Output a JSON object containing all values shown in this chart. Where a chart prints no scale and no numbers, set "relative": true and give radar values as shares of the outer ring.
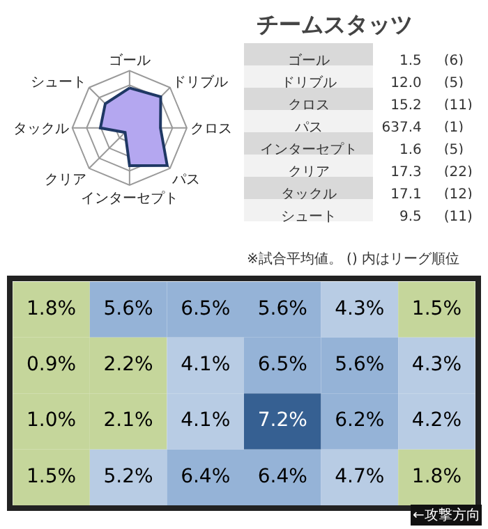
{
  "chart_data": [
    {
      "type": "radar",
      "relative": true,
      "grid": true,
      "categories": [
        "ゴール",
        "ドリブル",
        "クロス",
        "パス",
        "インターセプト",
        "クリア",
        "タックル",
        "シュート"
      ],
      "series": [
        {
          "color": "#b4a7f0",
          "values": [
            0.7,
            0.77,
            0.54,
            0.93,
            0.66,
            0.11,
            0.51,
            0.6
          ]
        }
      ]
    },
    {
      "type": "other",
      "title": "チームスタッツ",
      "categories": [
        "ゴール",
        "ドリブル",
        "クロス",
        "パス",
        "インターセプト",
        "クリア",
        "タックル",
        "シュート"
      ],
      "series": [
        {
          "values": [
            1.5,
            12.0,
            15.2,
            637.4,
            1.6,
            17.3,
            17.1,
            9.5
          ],
          "value_labels": [
            "1.5",
            "12.0",
            "15.2",
            "637.4",
            "1.6",
            "17.3",
            "17.1",
            "9.5"
          ]
        },
        {
          "values": [
            6,
            5,
            11,
            1,
            5,
            22,
            12,
            11
          ],
          "value_labels": [
            "(6)",
            "(5)",
            "(11)",
            "(1)",
            "(5)",
            "(22)",
            "(12)",
            "(11)"
          ]
        }
      ],
      "annotations": [
        "※試合平均値。 () 内はリーグ順位"
      ]
    },
    {
      "type": "heatmap",
      "categories": [
        null,
        null,
        null,
        null,
        null,
        null
      ],
      "y_categories": [
        null,
        null,
        null,
        null
      ],
      "cells": [
        [
          1.8,
          5.6,
          6.5,
          5.6,
          4.3,
          1.5
        ],
        [
          0.9,
          2.2,
          4.1,
          6.5,
          5.6,
          4.3
        ],
        [
          1.0,
          2.1,
          4.1,
          7.2,
          6.2,
          4.2
        ],
        [
          1.5,
          5.2,
          6.4,
          6.4,
          4.7,
          1.8
        ]
      ],
      "cell_labels": [
        [
          "1.8%",
          "5.6%",
          "6.5%",
          "5.6%",
          "4.3%",
          "1.5%"
        ],
        [
          "0.9%",
          "2.2%",
          "4.1%",
          "6.5%",
          "5.6%",
          "4.3%"
        ],
        [
          "1.0%",
          "2.1%",
          "4.1%",
          "7.2%",
          "6.2%",
          "4.2%"
        ],
        [
          "1.5%",
          "5.2%",
          "6.4%",
          "6.4%",
          "4.7%",
          "1.8%"
        ]
      ],
      "colors": [
        [
          "#c5d69b",
          "#95b3d7",
          "#95b3d7",
          "#95b3d7",
          "#b8cce4",
          "#c5d69b"
        ],
        [
          "#c5d69b",
          "#c5d69b",
          "#b8cce4",
          "#95b3d7",
          "#95b3d7",
          "#b8cce4"
        ],
        [
          "#c5d69b",
          "#c5d69b",
          "#b8cce4",
          "#366092",
          "#95b3d7",
          "#b8cce4"
        ],
        [
          "#c5d69b",
          "#b8cce4",
          "#95b3d7",
          "#95b3d7",
          "#b8cce4",
          "#c5d69b"
        ]
      ],
      "annotations": [
        "←攻撃方向"
      ]
    }
  ]
}
